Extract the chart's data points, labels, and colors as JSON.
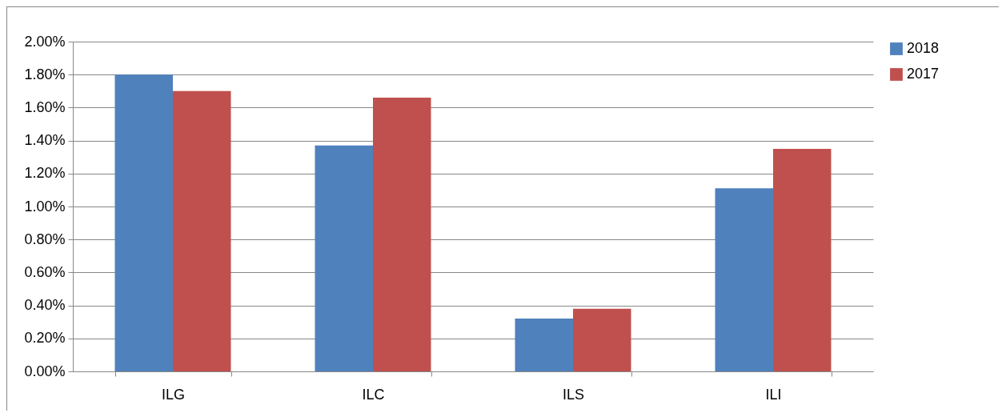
{
  "chart_data": {
    "type": "bar",
    "categories": [
      "ILG",
      "ILC",
      "ILS",
      "ILI"
    ],
    "series": [
      {
        "name": "2018",
        "color": "#4f81bd",
        "values": [
          1.8,
          1.37,
          0.32,
          1.11
        ]
      },
      {
        "name": "2017",
        "color": "#c0504d",
        "values": [
          1.7,
          1.66,
          0.38,
          1.35
        ]
      }
    ],
    "ylim": [
      0,
      2
    ],
    "yticks": [
      {
        "value": 0,
        "label": "0.00%"
      },
      {
        "value": 0.2,
        "label": "0.20%"
      },
      {
        "value": 0.4,
        "label": "0.40%"
      },
      {
        "value": 0.6,
        "label": "0.60%"
      },
      {
        "value": 0.8,
        "label": "0.80%"
      },
      {
        "value": 1,
        "label": "1.00%"
      },
      {
        "value": 1.2,
        "label": "1.20%"
      },
      {
        "value": 1.4,
        "label": "1.40%"
      },
      {
        "value": 1.6,
        "label": "1.60%"
      },
      {
        "value": 1.8,
        "label": "1.80%"
      },
      {
        "value": 2,
        "label": "2.00%"
      }
    ],
    "grid": "y",
    "legend": "right"
  }
}
